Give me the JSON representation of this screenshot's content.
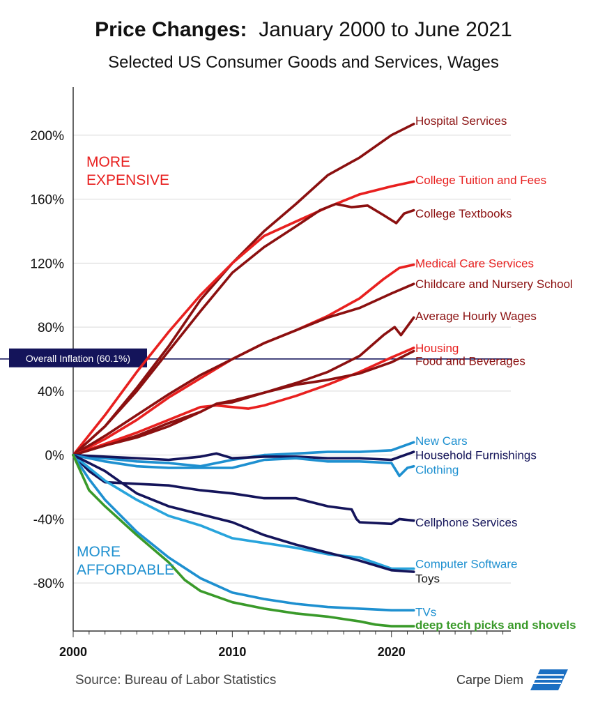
{
  "header": {
    "title_bold": "Price Changes:",
    "title_rest": "January 2000 to June 2021",
    "subtitle": "Selected US Consumer Goods and Services, Wages"
  },
  "footer": {
    "source": "Source: Bureau of Labor Statistics",
    "brand": "Carpe Diem",
    "logo_text": "AEI"
  },
  "chart_data": {
    "type": "line",
    "title": "Price Changes: January 2000 to June 2021",
    "subtitle": "Selected US Consumer Goods and Services, Wages",
    "xlabel": "",
    "ylabel": "",
    "xlim": [
      2000,
      2027.5
    ],
    "ylim": [
      -110,
      230
    ],
    "x_ticks": [
      2000,
      2010,
      2020
    ],
    "x_tick_labels": [
      "2000",
      "2010",
      "2020"
    ],
    "y_ticks": [
      200,
      160,
      120,
      80,
      40,
      0,
      -40,
      -80
    ],
    "y_tick_labels": [
      "200%",
      "160%",
      "120%",
      "80%",
      "40%",
      "0%",
      "-40%",
      "-80%"
    ],
    "grid": "horizontal",
    "annotations": {
      "more_expensive": [
        "MORE",
        "EXPENSIVE"
      ],
      "more_affordable": [
        "MORE",
        "AFFORDABLE"
      ]
    },
    "reference_line": {
      "label": "Overall Inflation (60.1%)",
      "y": 60.1
    },
    "series": [
      {
        "name": "Hospital Services",
        "color": "#8b1010",
        "points": [
          [
            2000,
            0
          ],
          [
            2002,
            18
          ],
          [
            2004,
            42
          ],
          [
            2006,
            68
          ],
          [
            2008,
            97
          ],
          [
            2010,
            120
          ],
          [
            2012,
            140
          ],
          [
            2014,
            157
          ],
          [
            2016,
            175
          ],
          [
            2018,
            186
          ],
          [
            2020,
            200
          ],
          [
            2021.4,
            207
          ]
        ]
      },
      {
        "name": "College Tuition and Fees",
        "color": "#e8201f",
        "points": [
          [
            2000,
            0
          ],
          [
            2002,
            25
          ],
          [
            2004,
            52
          ],
          [
            2006,
            77
          ],
          [
            2008,
            100
          ],
          [
            2010,
            120
          ],
          [
            2012,
            137
          ],
          [
            2014,
            146
          ],
          [
            2016,
            155
          ],
          [
            2018,
            163
          ],
          [
            2020,
            168
          ],
          [
            2021.4,
            171
          ]
        ]
      },
      {
        "name": "College Textbooks",
        "color": "#8b1010",
        "points": [
          [
            2000,
            0
          ],
          [
            2002,
            18
          ],
          [
            2004,
            40
          ],
          [
            2006,
            65
          ],
          [
            2008,
            90
          ],
          [
            2010,
            114
          ],
          [
            2012,
            130
          ],
          [
            2014,
            143
          ],
          [
            2015.5,
            153
          ],
          [
            2016.5,
            157
          ],
          [
            2017.5,
            155
          ],
          [
            2018.5,
            156
          ],
          [
            2019.5,
            150
          ],
          [
            2020.3,
            145
          ],
          [
            2020.8,
            151
          ],
          [
            2021.4,
            153
          ]
        ]
      },
      {
        "name": "Medical Care Services",
        "color": "#e8201f",
        "points": [
          [
            2000,
            0
          ],
          [
            2002,
            10
          ],
          [
            2004,
            22
          ],
          [
            2006,
            36
          ],
          [
            2008,
            48
          ],
          [
            2010,
            60
          ],
          [
            2012,
            70
          ],
          [
            2014,
            78
          ],
          [
            2016,
            87
          ],
          [
            2018,
            98
          ],
          [
            2019.5,
            110
          ],
          [
            2020.5,
            117
          ],
          [
            2021.4,
            119
          ]
        ]
      },
      {
        "name": "Childcare and Nursery School",
        "color": "#8b1010",
        "points": [
          [
            2000,
            0
          ],
          [
            2002,
            12
          ],
          [
            2004,
            25
          ],
          [
            2006,
            38
          ],
          [
            2008,
            50
          ],
          [
            2010,
            60
          ],
          [
            2012,
            70
          ],
          [
            2014,
            78
          ],
          [
            2016,
            86
          ],
          [
            2018,
            92
          ],
          [
            2020,
            101
          ],
          [
            2021.4,
            107
          ]
        ]
      },
      {
        "name": "Average Hourly Wages",
        "color": "#8b1010",
        "points": [
          [
            2000,
            0
          ],
          [
            2002,
            6
          ],
          [
            2004,
            12
          ],
          [
            2006,
            20
          ],
          [
            2008,
            27
          ],
          [
            2009,
            32
          ],
          [
            2010,
            34
          ],
          [
            2012,
            39
          ],
          [
            2014,
            45
          ],
          [
            2016,
            52
          ],
          [
            2018,
            62
          ],
          [
            2019.5,
            75
          ],
          [
            2020.2,
            80
          ],
          [
            2020.6,
            75
          ],
          [
            2021.4,
            86
          ]
        ]
      },
      {
        "name": "Housing",
        "color": "#e8201f",
        "points": [
          [
            2000,
            0
          ],
          [
            2002,
            7
          ],
          [
            2004,
            14
          ],
          [
            2006,
            22
          ],
          [
            2008,
            30
          ],
          [
            2009,
            31
          ],
          [
            2010,
            30
          ],
          [
            2011,
            29
          ],
          [
            2012,
            31
          ],
          [
            2014,
            37
          ],
          [
            2016,
            44
          ],
          [
            2018,
            52
          ],
          [
            2020,
            61
          ],
          [
            2021.4,
            67
          ]
        ]
      },
      {
        "name": "Food and Beverages",
        "color": "#8b1010",
        "points": [
          [
            2000,
            0
          ],
          [
            2002,
            6
          ],
          [
            2004,
            11
          ],
          [
            2006,
            18
          ],
          [
            2008,
            27
          ],
          [
            2009,
            32
          ],
          [
            2010,
            33
          ],
          [
            2012,
            39
          ],
          [
            2014,
            44
          ],
          [
            2016,
            47
          ],
          [
            2018,
            51
          ],
          [
            2020,
            58
          ],
          [
            2021.4,
            65
          ]
        ]
      },
      {
        "name": "New Cars",
        "color": "#1e90d0",
        "points": [
          [
            2000,
            0
          ],
          [
            2002,
            -2
          ],
          [
            2004,
            -4
          ],
          [
            2006,
            -5
          ],
          [
            2008,
            -7
          ],
          [
            2010,
            -3
          ],
          [
            2012,
            0
          ],
          [
            2014,
            1
          ],
          [
            2016,
            2
          ],
          [
            2018,
            2
          ],
          [
            2020,
            3
          ],
          [
            2021.4,
            8
          ]
        ]
      },
      {
        "name": "Household Furnishings",
        "color": "#14145a",
        "points": [
          [
            2000,
            0
          ],
          [
            2002,
            -1
          ],
          [
            2004,
            -2
          ],
          [
            2006,
            -3
          ],
          [
            2008,
            -1
          ],
          [
            2009,
            1
          ],
          [
            2010,
            -2
          ],
          [
            2012,
            -1
          ],
          [
            2014,
            -1
          ],
          [
            2016,
            -2
          ],
          [
            2018,
            -2
          ],
          [
            2020,
            -3
          ],
          [
            2021.4,
            2
          ]
        ]
      },
      {
        "name": "Clothing",
        "color": "#1e90d0",
        "points": [
          [
            2000,
            0
          ],
          [
            2002,
            -4
          ],
          [
            2004,
            -7
          ],
          [
            2006,
            -8
          ],
          [
            2008,
            -8
          ],
          [
            2010,
            -8
          ],
          [
            2012,
            -3
          ],
          [
            2014,
            -2
          ],
          [
            2016,
            -4
          ],
          [
            2018,
            -4
          ],
          [
            2020,
            -5
          ],
          [
            2020.5,
            -13
          ],
          [
            2021,
            -8
          ],
          [
            2021.4,
            -7
          ]
        ]
      },
      {
        "name": "Cellphone Services",
        "color": "#14145a",
        "points": [
          [
            2000,
            0
          ],
          [
            2001,
            -10
          ],
          [
            2002,
            -17
          ],
          [
            2004,
            -18
          ],
          [
            2006,
            -19
          ],
          [
            2008,
            -22
          ],
          [
            2010,
            -24
          ],
          [
            2012,
            -27
          ],
          [
            2014,
            -27
          ],
          [
            2016,
            -32
          ],
          [
            2017.5,
            -34
          ],
          [
            2017.8,
            -40
          ],
          [
            2018,
            -42
          ],
          [
            2020,
            -43
          ],
          [
            2020.5,
            -40
          ],
          [
            2021.4,
            -41
          ]
        ]
      },
      {
        "name": "Computer Software",
        "color": "#28a4dc",
        "points": [
          [
            2000,
            0
          ],
          [
            2002,
            -16
          ],
          [
            2004,
            -28
          ],
          [
            2006,
            -38
          ],
          [
            2008,
            -44
          ],
          [
            2010,
            -52
          ],
          [
            2012,
            -55
          ],
          [
            2014,
            -58
          ],
          [
            2016,
            -62
          ],
          [
            2018,
            -64
          ],
          [
            2020,
            -71
          ],
          [
            2021.4,
            -71
          ]
        ]
      },
      {
        "name": "Toys",
        "color": "#14145a",
        "points": [
          [
            2000,
            0
          ],
          [
            2002,
            -10
          ],
          [
            2004,
            -24
          ],
          [
            2006,
            -32
          ],
          [
            2008,
            -37
          ],
          [
            2010,
            -42
          ],
          [
            2012,
            -50
          ],
          [
            2014,
            -56
          ],
          [
            2016,
            -61
          ],
          [
            2018,
            -66
          ],
          [
            2020,
            -72
          ],
          [
            2021.4,
            -73
          ]
        ]
      },
      {
        "name": "TVs",
        "color": "#1e90d0",
        "points": [
          [
            2000,
            0
          ],
          [
            2001,
            -15
          ],
          [
            2002,
            -28
          ],
          [
            2004,
            -48
          ],
          [
            2006,
            -64
          ],
          [
            2008,
            -77
          ],
          [
            2010,
            -86
          ],
          [
            2012,
            -90
          ],
          [
            2014,
            -93
          ],
          [
            2016,
            -95
          ],
          [
            2018,
            -96
          ],
          [
            2020,
            -97
          ],
          [
            2021.4,
            -97
          ]
        ]
      },
      {
        "name": "deep tech picks and shovels",
        "color": "#3a9a2a",
        "points": [
          [
            2000,
            0
          ],
          [
            2001,
            -22
          ],
          [
            2002,
            -32
          ],
          [
            2004,
            -50
          ],
          [
            2006,
            -67
          ],
          [
            2007,
            -78
          ],
          [
            2008,
            -85
          ],
          [
            2010,
            -92
          ],
          [
            2012,
            -96
          ],
          [
            2014,
            -99
          ],
          [
            2016,
            -101
          ],
          [
            2018,
            -104
          ],
          [
            2019,
            -106
          ],
          [
            2020,
            -107
          ],
          [
            2021.4,
            -107
          ]
        ]
      }
    ],
    "labels": [
      {
        "text": "Hospital Services",
        "y": 209,
        "color": "#8b1010"
      },
      {
        "text": "College Tuition and Fees",
        "y": 172,
        "color": "#e8201f"
      },
      {
        "text": "College Textbooks",
        "y": 151,
        "color": "#8b1010"
      },
      {
        "text": "Medical Care Services",
        "y": 120,
        "color": "#e8201f"
      },
      {
        "text": "Childcare and Nursery School",
        "y": 107,
        "color": "#8b1010"
      },
      {
        "text": "Average Hourly Wages",
        "y": 87,
        "color": "#8b1010"
      },
      {
        "text": "Housing",
        "y": 67,
        "color": "#e8201f"
      },
      {
        "text": "Food and Beverages",
        "y": 59,
        "color": "#8b1010"
      },
      {
        "text": "New Cars",
        "y": 9,
        "color": "#1e90d0"
      },
      {
        "text": "Household Furnishings",
        "y": 0,
        "color": "#14145a"
      },
      {
        "text": "Clothing",
        "y": -9,
        "color": "#1e90d0"
      },
      {
        "text": "Cellphone Services",
        "y": -42,
        "color": "#14145a"
      },
      {
        "text": "Computer Software",
        "y": -68,
        "color": "#1e90d0"
      },
      {
        "text": "Toys",
        "y": -77,
        "color": "#111111"
      },
      {
        "text": "TVs",
        "y": -98,
        "color": "#1e90d0"
      },
      {
        "text": "deep tech picks and shovels",
        "y": -106,
        "color": "#3a9a2a"
      }
    ]
  }
}
